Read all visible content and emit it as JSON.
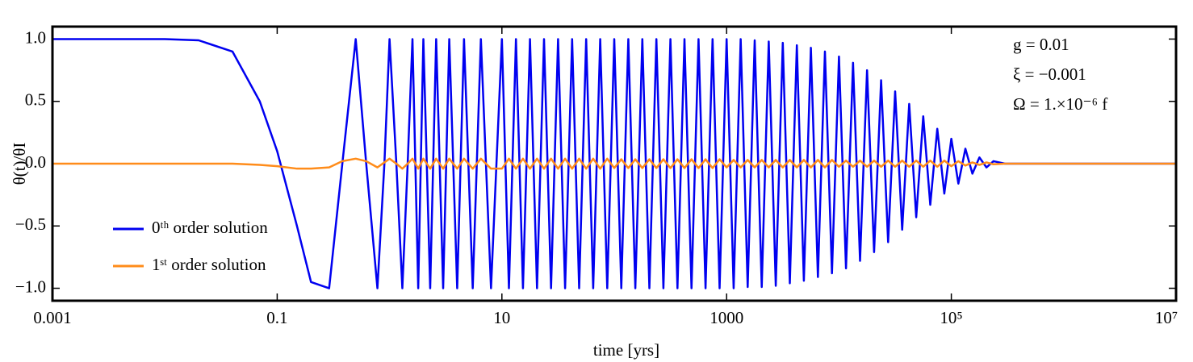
{
  "chart_data": {
    "type": "line",
    "xlabel": "time [yrs]",
    "ylabel": "θ(t)/θI",
    "annotations": [
      "g = 0.01",
      "ξ = −0.001",
      "Ω = 1.×10⁻⁶ f"
    ],
    "xscale": "log",
    "xlim": [
      0.001,
      10000000
    ],
    "ylim": [
      -1.1,
      1.1
    ],
    "xticks": [
      0.001,
      0.1,
      10,
      1000,
      {
        "value": 100000,
        "label": "10⁵"
      },
      {
        "value": 10000000,
        "label": "10⁷"
      }
    ],
    "yticks": [
      {
        "value": 1,
        "label": "1.0"
      },
      0.5,
      {
        "value": 0,
        "label": "0.0"
      },
      {
        "value": -0.5,
        "label": "−0.5"
      },
      {
        "value": -1,
        "label": "−1.0"
      }
    ],
    "legend": "lower left",
    "x": [
      0.001,
      0.01,
      0.02,
      0.04,
      0.07,
      0.1,
      0.15,
      0.2,
      0.29,
      0.38,
      0.5,
      0.62,
      0.78,
      0.9,
      1.0,
      1.15,
      1.3,
      1.45,
      1.6,
      1.8,
      2,
      2.3,
      2.6,
      3,
      3.4,
      4,
      4.6,
      5.5,
      6.5,
      8,
      10,
      11.55,
      13.34,
      15.4,
      17.78,
      20.54,
      23.71,
      27.38,
      31.62,
      36.52,
      42.17,
      48.7,
      56.23,
      64.94,
      74.99,
      86.6,
      100,
      115.5,
      133.4,
      154,
      177.8,
      205.4,
      237.1,
      273.8,
      316.2,
      365.2,
      421.7,
      487,
      562.3,
      649.4,
      749.9,
      866,
      1000,
      1155,
      1334,
      1540,
      1778,
      2054,
      2371,
      2738,
      3162,
      3652,
      4217,
      4870,
      5623,
      6494,
      7499,
      8660,
      10000,
      11550,
      13340,
      15400,
      17780,
      20540,
      23710,
      27380,
      31620,
      36520,
      42170,
      48700,
      56230,
      64940,
      74990,
      86600,
      100000,
      115500,
      133400,
      154000,
      177800,
      205400,
      237100,
      300000,
      1000000,
      10000000
    ],
    "series": [
      {
        "name": "0ᵗʰ order solution",
        "color": "#0000f0",
        "values": [
          1,
          1,
          0.99,
          0.9,
          0.5,
          0.1,
          -0.5,
          -0.95,
          -1,
          0,
          1,
          0,
          -1,
          0,
          1,
          0,
          -1,
          0,
          1,
          -1,
          1,
          -1,
          1,
          -1,
          1,
          -1,
          1,
          -1,
          1,
          -1,
          1,
          -1,
          1,
          -1,
          1,
          -1,
          1,
          -1,
          1,
          -1,
          1,
          -1,
          1,
          -1,
          1,
          -1,
          1,
          -1,
          1,
          -1,
          1,
          -1,
          1,
          -1,
          1,
          -1,
          1,
          -1,
          1,
          -1,
          1,
          -1,
          1,
          -1,
          1,
          -0.99,
          0.99,
          -0.99,
          0.98,
          -0.98,
          0.97,
          -0.96,
          0.95,
          -0.94,
          0.93,
          -0.91,
          0.9,
          -0.88,
          0.86,
          -0.84,
          0.81,
          -0.78,
          0.75,
          -0.71,
          0.67,
          -0.63,
          0.58,
          -0.53,
          0.48,
          -0.43,
          0.38,
          -0.33,
          0.28,
          -0.24,
          0.2,
          -0.16,
          0.12,
          -0.08,
          0.05,
          -0.03,
          0.02,
          0,
          0,
          0
        ]
      },
      {
        "name": "1ˢᵗ order solution",
        "color": "#ff8c1a",
        "values": [
          0,
          0,
          0,
          0,
          -0.01,
          -0.02,
          -0.04,
          -0.04,
          -0.03,
          0.02,
          0.04,
          0.02,
          -0.03,
          0.01,
          0.04,
          0,
          -0.04,
          0,
          0.04,
          -0.04,
          0.04,
          -0.04,
          0.04,
          -0.04,
          0.04,
          -0.04,
          0.04,
          -0.04,
          0.04,
          -0.04,
          -0.04,
          0.04,
          -0.04,
          0.04,
          -0.04,
          0.04,
          -0.04,
          0.04,
          -0.04,
          0.04,
          -0.04,
          0.04,
          -0.04,
          0.04,
          -0.04,
          0.04,
          -0.035,
          0.035,
          -0.035,
          0.035,
          -0.035,
          0.035,
          -0.035,
          0.035,
          -0.035,
          0.035,
          -0.035,
          0.035,
          -0.035,
          0.035,
          -0.035,
          0.035,
          -0.03,
          0.03,
          -0.03,
          0.03,
          -0.03,
          0.03,
          -0.03,
          0.03,
          -0.03,
          0.03,
          -0.03,
          0.03,
          -0.03,
          0.03,
          -0.03,
          0.03,
          -0.025,
          0.025,
          -0.025,
          0.025,
          -0.025,
          0.025,
          -0.025,
          0.025,
          -0.025,
          0.025,
          -0.025,
          0.025,
          -0.025,
          0.025,
          -0.025,
          0.025,
          -0.02,
          0.02,
          -0.015,
          0.01,
          -0.01,
          0.01,
          -0.005,
          0,
          0,
          0
        ]
      }
    ]
  }
}
